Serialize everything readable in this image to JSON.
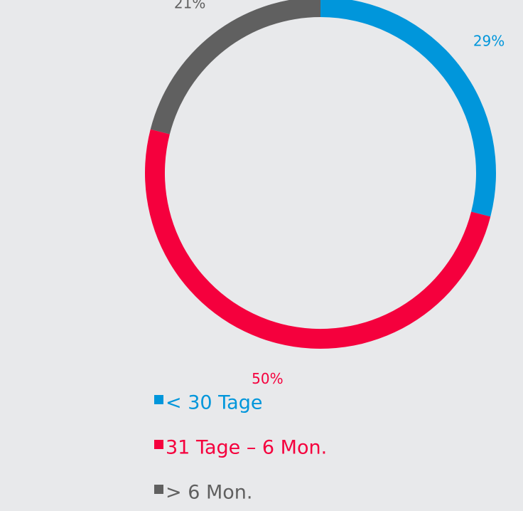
{
  "chart_data": {
    "type": "donut",
    "categories": [
      "< 30 Tage",
      "31 Tage – 6 Mon.",
      "> 6 Mon."
    ],
    "values": [
      29,
      50,
      21
    ],
    "value_labels": [
      "29%",
      "50%",
      "21%"
    ],
    "colors": [
      "#0096db",
      "#f5003d",
      "#606060"
    ],
    "legend": "bottom-left"
  }
}
